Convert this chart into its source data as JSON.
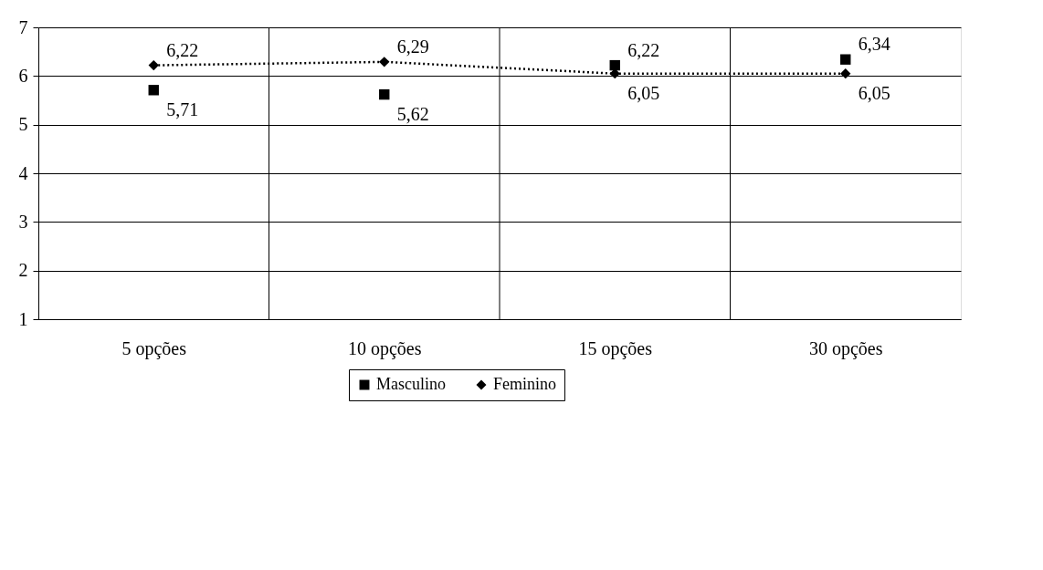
{
  "chart_data": {
    "type": "line",
    "categories": [
      "5 opções",
      "10 opções",
      "15 opções",
      "30 opções"
    ],
    "series": [
      {
        "name": "Masculino",
        "type": "scatter",
        "color": "#000000",
        "marker": "square",
        "values": [
          5.71,
          5.62,
          6.22,
          6.34
        ],
        "value_labels": [
          "5,71",
          "5,62",
          "6,22",
          "6,34"
        ]
      },
      {
        "name": "Feminino",
        "color": "#000000",
        "marker": "diamond",
        "line_style": "dotted",
        "values": [
          6.22,
          6.29,
          6.05,
          6.05
        ],
        "value_labels": [
          "6,22",
          "6,29",
          "6,05",
          "6,05"
        ]
      }
    ],
    "ylim": [
      1,
      7
    ],
    "yticks": [
      1,
      2,
      3,
      4,
      5,
      6,
      7
    ],
    "grid": true,
    "legend": "bottom"
  }
}
